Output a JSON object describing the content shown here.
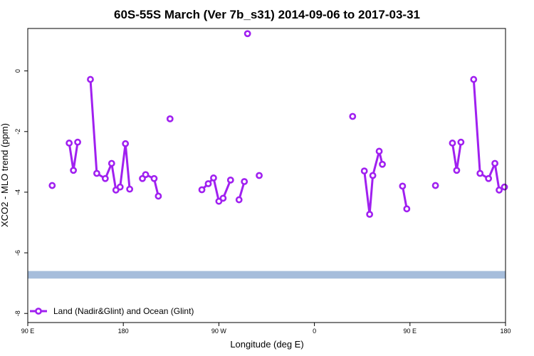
{
  "chart_data": {
    "type": "line",
    "title": "60S-55S March (Ver 7b_s31)   2014-09-06 to 2017-03-31",
    "xlabel": "Longitude (deg E)",
    "ylabel": "XCO2 - MLO trend (ppm)",
    "xlim": [
      90,
      540
    ],
    "ylim": [
      -8.3,
      1.4
    ],
    "x_ticks": [
      {
        "value": 90,
        "label": "90 E"
      },
      {
        "value": 180,
        "label": "180"
      },
      {
        "value": 270,
        "label": "90 W"
      },
      {
        "value": 360,
        "label": "0"
      },
      {
        "value": 450,
        "label": "90 E"
      },
      {
        "value": 540,
        "label": "180"
      }
    ],
    "y_ticks": [
      {
        "value": 0,
        "label": "0"
      },
      {
        "value": -2,
        "label": "-2"
      },
      {
        "value": -4,
        "label": "-4"
      },
      {
        "value": -6,
        "label": "-6"
      },
      {
        "value": -8,
        "label": "-8"
      }
    ],
    "band": {
      "y_from": -6.85,
      "y_to": -6.6,
      "color": "#a6bddb"
    },
    "series": [
      {
        "name": "Land (Nadir&Glint) and Ocean (Glint)",
        "color": "#a020f0",
        "segments": [
          [
            [
              113,
              -3.78
            ]
          ],
          [
            [
              129,
              -2.38
            ],
            [
              133,
              -3.28
            ],
            [
              137,
              -2.35
            ]
          ],
          [
            [
              149,
              -0.28
            ],
            [
              155,
              -3.38
            ],
            [
              163,
              -3.55
            ],
            [
              169,
              -3.05
            ],
            [
              173,
              -3.93
            ],
            [
              177,
              -3.83
            ],
            [
              182,
              -2.4
            ],
            [
              186,
              -3.9
            ]
          ],
          [
            [
              198,
              -3.55
            ],
            [
              201,
              -3.42
            ],
            [
              209,
              -3.55
            ],
            [
              213,
              -4.13
            ]
          ],
          [
            [
              224,
              -1.58
            ]
          ],
          [
            [
              254,
              -3.92
            ],
            [
              260,
              -3.72
            ],
            [
              265,
              -3.53
            ],
            [
              270,
              -4.3
            ],
            [
              274,
              -4.2
            ],
            [
              281,
              -3.6
            ]
          ],
          [
            [
              289,
              -4.25
            ],
            [
              294,
              -3.65
            ]
          ],
          [
            [
              297,
              1.23
            ]
          ],
          [
            [
              308,
              -3.45
            ]
          ],
          [
            [
              396,
              -1.5
            ]
          ],
          [
            [
              407,
              -3.3
            ],
            [
              412,
              -4.73
            ],
            [
              415,
              -3.45
            ],
            [
              421,
              -2.65
            ],
            [
              424,
              -3.08
            ]
          ],
          [
            [
              443,
              -3.8
            ],
            [
              447,
              -4.55
            ]
          ],
          [
            [
              474,
              -3.78
            ]
          ],
          [
            [
              490,
              -2.38
            ],
            [
              494,
              -3.28
            ],
            [
              498,
              -2.35
            ]
          ],
          [
            [
              510,
              -0.28
            ],
            [
              516,
              -3.38
            ],
            [
              524,
              -3.55
            ],
            [
              530,
              -3.05
            ],
            [
              534,
              -3.93
            ],
            [
              539,
              -3.83
            ]
          ]
        ]
      }
    ],
    "legend_position": "bottom-left"
  }
}
